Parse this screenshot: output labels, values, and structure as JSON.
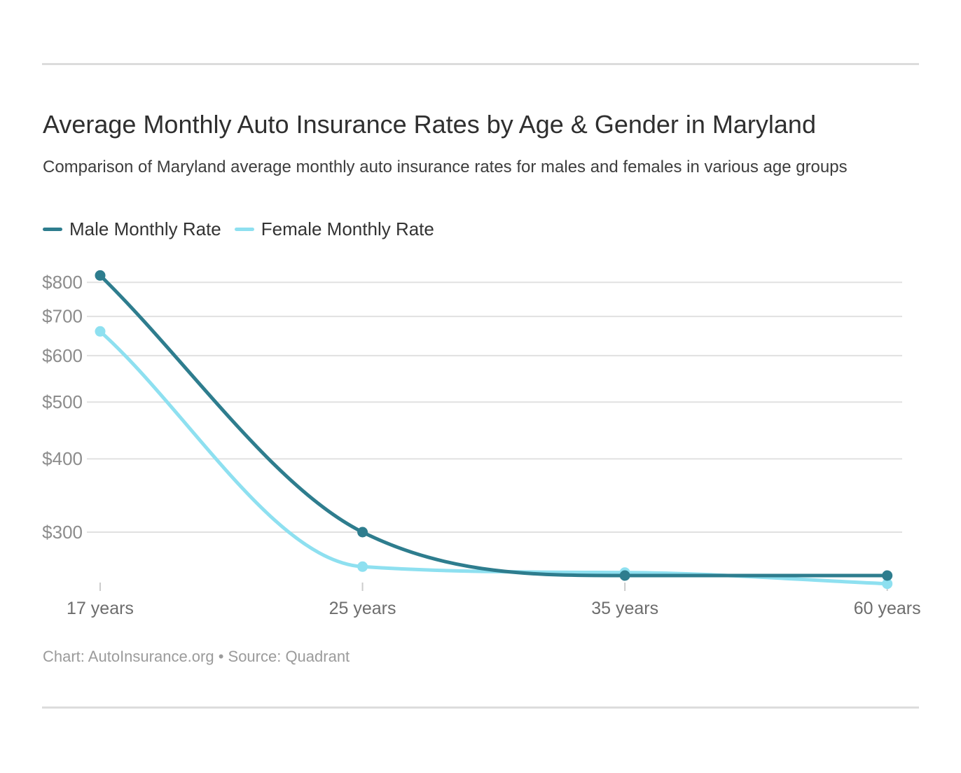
{
  "header": {
    "title": "Average Monthly Auto Insurance Rates by Age & Gender in Maryland",
    "subtitle": "Comparison of Maryland average monthly auto insurance rates for males and females in various age groups"
  },
  "legend": {
    "items": [
      {
        "label": "Male Monthly Rate",
        "color": "#2e7d8e"
      },
      {
        "label": "Female Monthly Rate",
        "color": "#8ee0f0"
      }
    ]
  },
  "chart_data": {
    "type": "line",
    "title": "Average Monthly Auto Insurance Rates by Age & Gender in Maryland",
    "subtitle": "Comparison of Maryland average monthly auto insurance rates for males and females in various age groups",
    "categories": [
      "17 years",
      "25 years",
      "35 years",
      "60 years"
    ],
    "series": [
      {
        "name": "Male Monthly Rate",
        "color": "#2e7d8e",
        "values": [
          822,
          300,
          253,
          253
        ]
      },
      {
        "name": "Female Monthly Rate",
        "color": "#8ee0f0",
        "values": [
          660,
          262,
          256,
          245
        ]
      }
    ],
    "xlabel": "",
    "ylabel": "",
    "y_axis": {
      "scale": "log",
      "tick_values": [
        800,
        700,
        600,
        500,
        400,
        300
      ],
      "tick_labels": [
        "$800",
        "$700",
        "$600",
        "$500",
        "$400",
        "$300"
      ],
      "range_approx": [
        237,
        830
      ],
      "unit_prefix": "$"
    },
    "grid": true,
    "line_style": "curved-monotone",
    "markers": true,
    "legend_position": "top-left"
  },
  "footer": {
    "text": "Chart: AutoInsurance.org • Source: Quadrant"
  },
  "colors": {
    "male_series": "#2e7d8e",
    "female_series": "#8ee0f0",
    "gridline": "#e1e1e1",
    "axis_tick": "#cccccc",
    "y_label": "#8c8c8c",
    "x_label": "#6d6d6d",
    "title": "#2f2f2f",
    "subtitle": "#3d3d3d",
    "footer": "#9b9b9b",
    "divider": "#dcdcdc"
  }
}
